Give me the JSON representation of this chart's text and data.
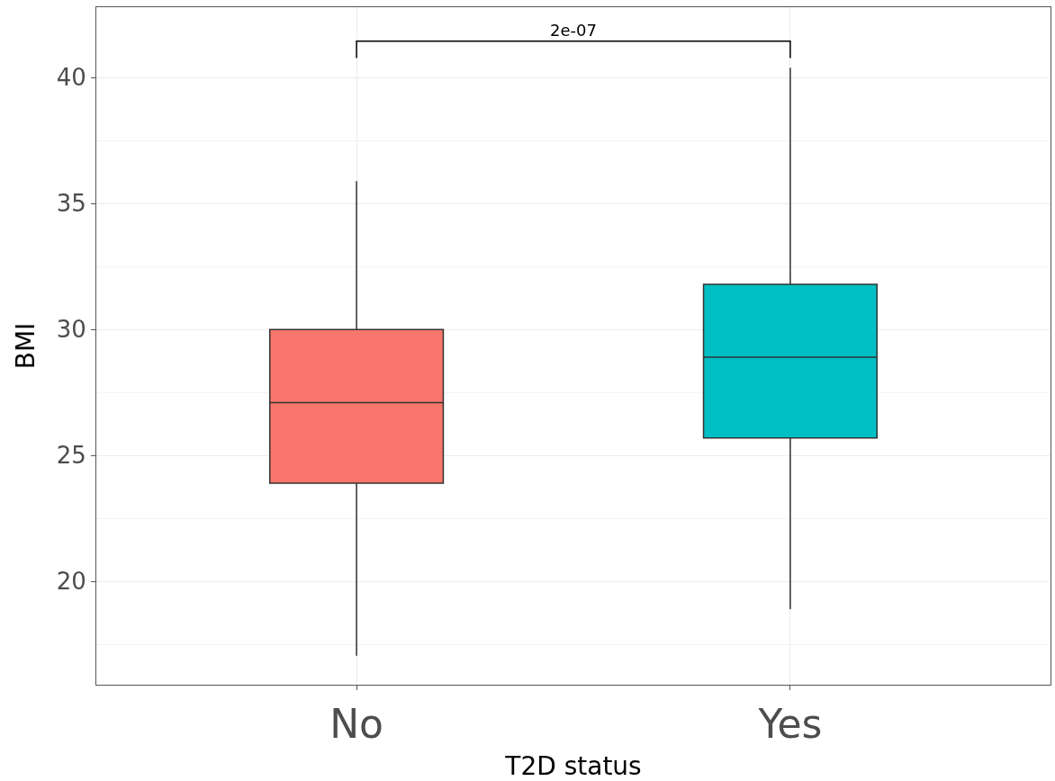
{
  "chart_data": {
    "type": "box",
    "xlabel": "T2D status",
    "ylabel": "BMI",
    "categories": [
      "No",
      "Yes"
    ],
    "series": [
      {
        "color": "#f8766d",
        "boxes": [
          {
            "low": 17.05,
            "q1": 23.9,
            "median": 27.1,
            "q3": 30.0,
            "high": 35.9
          },
          null
        ]
      },
      {
        "color": "#00bfc4",
        "boxes": [
          null,
          {
            "low": 18.9,
            "q1": 25.7,
            "median": 28.9,
            "q3": 31.8,
            "high": 40.4
          }
        ]
      }
    ],
    "ylim": [
      15.9,
      42.8
    ],
    "yticks": [
      20,
      25,
      30,
      35,
      40
    ],
    "grid": true,
    "annotations": [
      "2e-07"
    ]
  }
}
